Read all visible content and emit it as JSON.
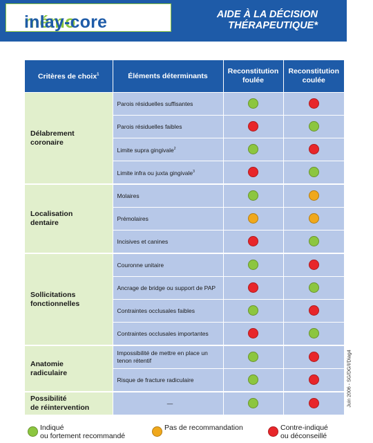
{
  "logo": {
    "part1": "mémo",
    "part2": "inlay-core"
  },
  "title": {
    "line1": "AIDE À LA DÉCISION",
    "line2": "THÉRAPEUTIQUE*"
  },
  "colors": {
    "brand_blue": "#1e5ba8",
    "green": "#8cc63f",
    "orange": "#f0a81c",
    "red": "#e8262a"
  },
  "table": {
    "headers": {
      "criteria": "Critères de choix",
      "criteria_sup": "1",
      "elements": "Éléments déterminants",
      "col_a_line1": "Reconstitution",
      "col_a_line2": "foulée",
      "col_b_line1": "Reconstitution",
      "col_b_line2": "coulée"
    },
    "groups": [
      {
        "label1": "Délabrement",
        "label2": "coronaire",
        "rows": [
          {
            "text": "Parois résiduelles suffisantes",
            "sup": "",
            "a": "green",
            "b": "red"
          },
          {
            "text": "Parois résiduelles faibles",
            "sup": "",
            "a": "red",
            "b": "green"
          },
          {
            "text": "Limite supra gingivale",
            "sup": "2",
            "a": "green",
            "b": "red"
          },
          {
            "text": "Limite infra ou juxta gingivale",
            "sup": "3",
            "a": "red",
            "b": "green"
          }
        ]
      },
      {
        "label1": "Localisation",
        "label2": "dentaire",
        "rows": [
          {
            "text": "Molaires",
            "sup": "",
            "a": "green",
            "b": "orange"
          },
          {
            "text": "Prémolaires",
            "sup": "",
            "a": "orange",
            "b": "orange"
          },
          {
            "text": "Incisives et canines",
            "sup": "",
            "a": "red",
            "b": "green"
          }
        ]
      },
      {
        "label1": "Sollicitations",
        "label2": "fonctionnelles",
        "rows": [
          {
            "text": "Couronne unitaire",
            "sup": "",
            "a": "green",
            "b": "red"
          },
          {
            "text": "Ancrage de bridge ou support de PAP",
            "sup": "",
            "a": "red",
            "b": "green"
          },
          {
            "text": "Contraintes occlusales faibles",
            "sup": "",
            "a": "green",
            "b": "red"
          },
          {
            "text": "Contraintes occlusales importantes",
            "sup": "",
            "a": "red",
            "b": "green"
          }
        ]
      },
      {
        "label1": "Anatomie",
        "label2": "radiculaire",
        "rows": [
          {
            "text": "Impossibilité de mettre en place un tenon rétentif",
            "sup": "",
            "a": "green",
            "b": "red"
          },
          {
            "text": "Risque de fracture radiculaire",
            "sup": "",
            "a": "green",
            "b": "red"
          }
        ]
      },
      {
        "label1": "Possibilité",
        "label2": "de réintervention",
        "rows": [
          {
            "text": "—",
            "sup": "",
            "a": "green",
            "b": "red"
          }
        ]
      }
    ]
  },
  "side_note": "Juin 2006 - SG/DG/I/Diag4",
  "legend": {
    "green_line1": "Indiqué",
    "green_line2": "ou fortement recommandé",
    "orange": "Pas de recommandation",
    "red_line1": "Contre-indiqué",
    "red_line2": "ou déconseillé"
  }
}
